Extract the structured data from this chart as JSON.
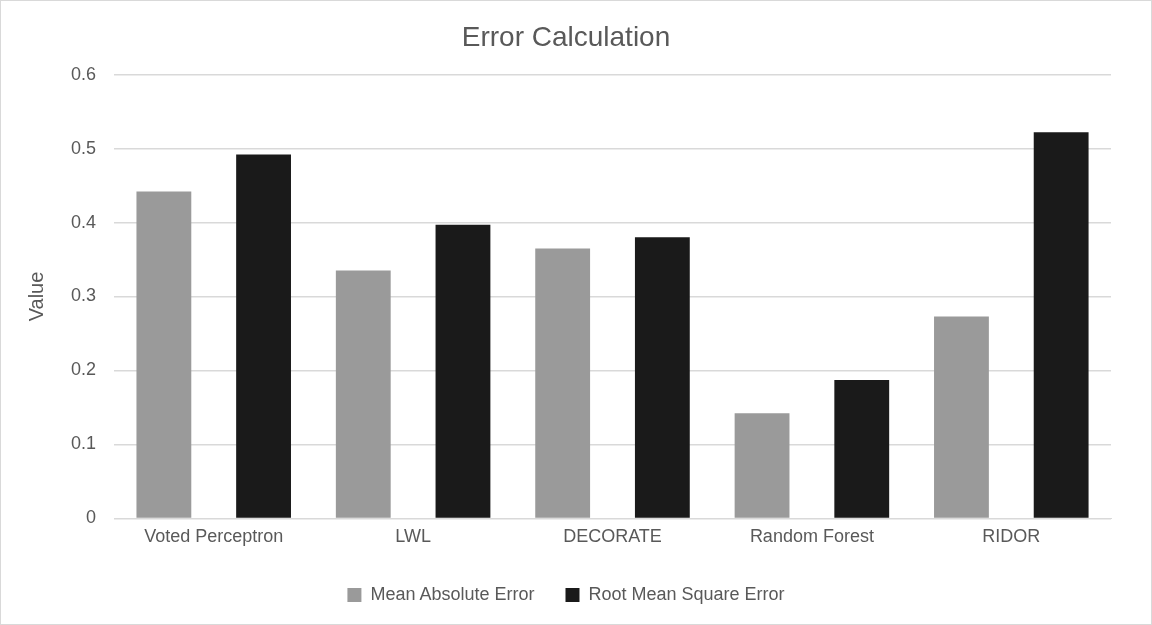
{
  "chart_data": {
    "type": "bar",
    "title": "Error Calculation",
    "ylabel": "Value",
    "categories": [
      "Voted Perceptron",
      "LWL",
      "DECORATE",
      "Random Forest",
      "RIDOR"
    ],
    "series": [
      {
        "name": "Mean Absolute Error",
        "color": "#9a9a9a",
        "values": [
          0.442,
          0.335,
          0.365,
          0.142,
          0.273
        ]
      },
      {
        "name": "Root Mean Square Error",
        "color": "#1a1a1a",
        "values": [
          0.492,
          0.397,
          0.38,
          0.187,
          0.522
        ]
      }
    ],
    "ylim": [
      0,
      0.6
    ],
    "yticks": [
      0,
      0.1,
      0.2,
      0.3,
      0.4,
      0.5,
      0.6
    ],
    "grid": "y",
    "legend": "bottom"
  }
}
